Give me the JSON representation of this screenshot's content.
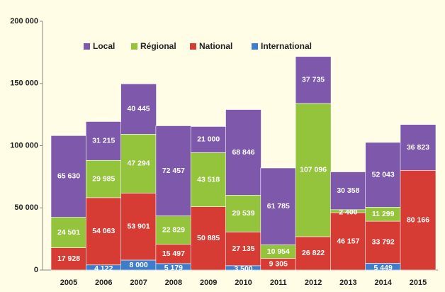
{
  "chart_data": {
    "type": "bar",
    "stacked": true,
    "categories": [
      "2005",
      "2006",
      "2007",
      "2008",
      "2009",
      "2010",
      "2011",
      "2012",
      "2013",
      "2014",
      "2015"
    ],
    "series": [
      {
        "name": "Local",
        "color": "#7d58ab",
        "values": [
          65630,
          31215,
          40445,
          72457,
          21000,
          68846,
          61785,
          37735,
          30358,
          52043,
          36823
        ],
        "value_labels": [
          "65 630",
          "31 215",
          "40 445",
          "72 457",
          "21 000",
          "68 846",
          "61 785",
          "37 735",
          "30 358",
          "52 043",
          "36 823"
        ]
      },
      {
        "name": "Régional",
        "color": "#94c43c",
        "values": [
          24501,
          29985,
          47294,
          22829,
          43518,
          29539,
          10954,
          107096,
          2400,
          11299,
          null
        ],
        "value_labels": [
          "24 501",
          "29 985",
          "47 294",
          "22 829",
          "43 518",
          "29 539",
          "10 954",
          "107 096",
          "2 400",
          "11 299",
          null
        ]
      },
      {
        "name": "National",
        "color": "#d63c34",
        "values": [
          17928,
          54063,
          53901,
          15497,
          50885,
          27135,
          9305,
          26822,
          46157,
          33792,
          80166
        ],
        "value_labels": [
          "17 928",
          "54 063",
          "53 901",
          "15 497",
          "50 885",
          "27 135",
          "9 305",
          "26 822",
          "46 157",
          "33 792",
          "80 166"
        ]
      },
      {
        "name": "International",
        "color": "#3d7dcc",
        "values": [
          null,
          4122,
          8000,
          5179,
          null,
          3500,
          null,
          null,
          null,
          5449,
          null
        ],
        "value_labels": [
          null,
          "4 122",
          "8 000",
          "5 179",
          null,
          "3 500",
          null,
          null,
          null,
          "5 449",
          null
        ]
      }
    ],
    "ylim": [
      0,
      200000
    ],
    "yticks": [
      {
        "value": 0,
        "label": "0"
      },
      {
        "value": 50000,
        "label": "50 000"
      },
      {
        "value": 100000,
        "label": "100 000"
      },
      {
        "value": 150000,
        "label": "150 000"
      },
      {
        "value": 200000,
        "label": "200 000"
      }
    ],
    "legend": "top-left"
  }
}
